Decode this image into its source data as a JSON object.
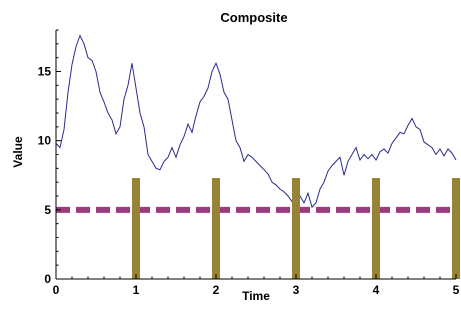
{
  "chart_data": {
    "type": "line",
    "title": "Composite",
    "xlabel": "Time",
    "ylabel": "Value",
    "xlim": [
      0,
      5
    ],
    "ylim": [
      0,
      18
    ],
    "xticks": [
      0,
      1,
      2,
      3,
      4,
      5
    ],
    "yticks": [
      0,
      5,
      10,
      15
    ],
    "grid": false,
    "series": [
      {
        "kind": "line",
        "color": "#2b2b8c",
        "x": [
          0.0,
          0.05,
          0.1,
          0.15,
          0.2,
          0.25,
          0.3,
          0.35,
          0.4,
          0.45,
          0.5,
          0.55,
          0.6,
          0.65,
          0.7,
          0.75,
          0.8,
          0.85,
          0.9,
          0.95,
          1.0,
          1.05,
          1.1,
          1.15,
          1.2,
          1.25,
          1.3,
          1.35,
          1.4,
          1.45,
          1.5,
          1.55,
          1.6,
          1.65,
          1.7,
          1.75,
          1.8,
          1.85,
          1.9,
          1.95,
          2.0,
          2.05,
          2.1,
          2.15,
          2.2,
          2.25,
          2.3,
          2.35,
          2.4,
          2.45,
          2.5,
          2.55,
          2.6,
          2.65,
          2.7,
          2.75,
          2.8,
          2.85,
          2.9,
          2.95,
          3.0,
          3.05,
          3.1,
          3.15,
          3.2,
          3.25,
          3.3,
          3.35,
          3.4,
          3.45,
          3.5,
          3.55,
          3.6,
          3.65,
          3.7,
          3.75,
          3.8,
          3.85,
          3.9,
          3.95,
          4.0,
          4.05,
          4.1,
          4.15,
          4.2,
          4.25,
          4.3,
          4.35,
          4.4,
          4.45,
          4.5,
          4.55,
          4.6,
          4.65,
          4.7,
          4.75,
          4.8,
          4.85,
          4.9,
          4.95,
          5.0
        ],
        "y": [
          9.8,
          9.5,
          10.8,
          13.5,
          15.5,
          16.8,
          17.6,
          17.0,
          16.0,
          15.8,
          15.0,
          13.5,
          12.8,
          12.0,
          11.5,
          10.5,
          11.0,
          13.0,
          14.0,
          15.6,
          13.8,
          12.0,
          11.0,
          9.0,
          8.5,
          8.0,
          7.9,
          8.5,
          8.8,
          9.5,
          8.8,
          9.7,
          10.3,
          11.2,
          10.6,
          11.8,
          12.8,
          13.2,
          13.8,
          15.0,
          15.6,
          14.8,
          13.5,
          13.0,
          11.5,
          10.0,
          9.5,
          8.5,
          9.0,
          8.8,
          8.5,
          8.2,
          7.9,
          7.6,
          7.0,
          6.8,
          6.5,
          6.3,
          6.0,
          5.6,
          5.3,
          6.0,
          5.5,
          6.2,
          5.2,
          5.5,
          6.5,
          7.0,
          7.8,
          8.2,
          8.5,
          8.8,
          7.5,
          8.5,
          9.0,
          9.5,
          8.6,
          9.0,
          8.7,
          9.0,
          8.6,
          9.2,
          9.4,
          9.1,
          9.8,
          10.2,
          10.6,
          10.5,
          11.1,
          11.6,
          11.0,
          10.8,
          9.9,
          9.7,
          9.5,
          9.0,
          9.4,
          8.9,
          9.4,
          9.1,
          8.6
        ]
      },
      {
        "kind": "hline",
        "y": 5,
        "color": "#9b3a7c",
        "dashed": true
      },
      {
        "kind": "bars",
        "color": "#958438",
        "x": [
          1,
          2,
          3,
          4,
          5
        ],
        "values": [
          7.3,
          7.3,
          7.3,
          7.3,
          7.3
        ]
      }
    ]
  }
}
